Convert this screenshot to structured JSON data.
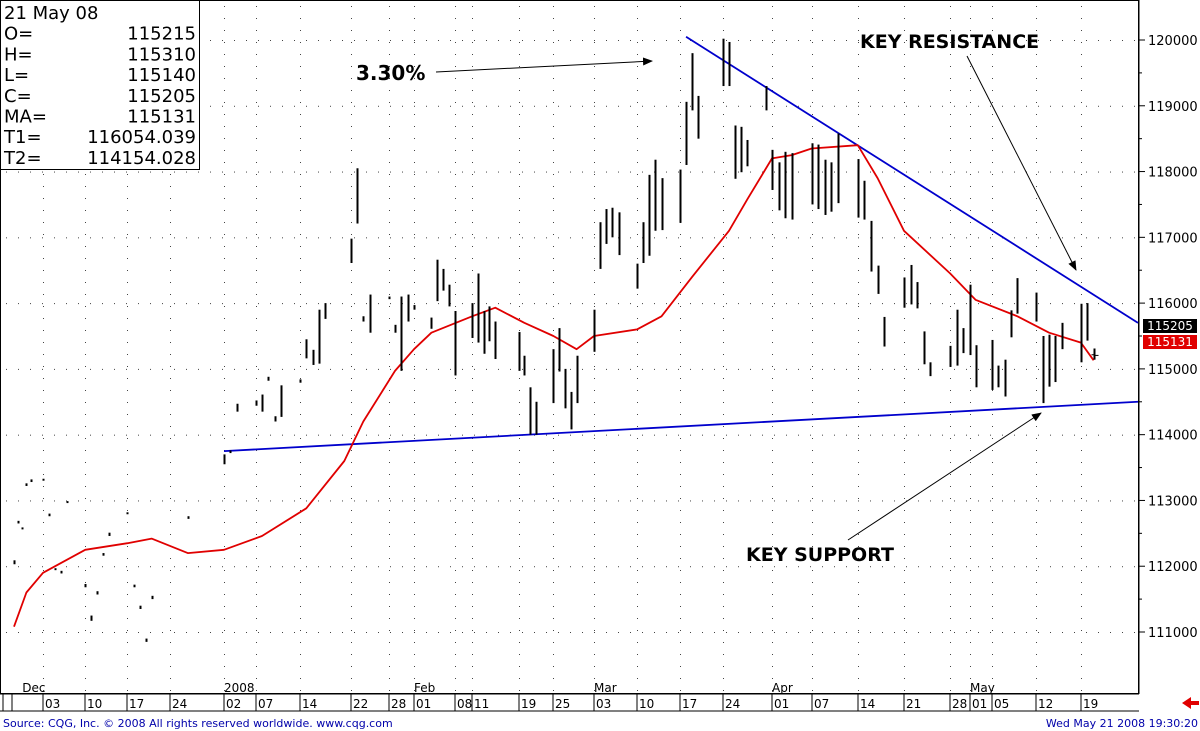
{
  "info_box": [
    {
      "label": "21 May 08",
      "value": ""
    },
    {
      "label": "O=",
      "value": "115215"
    },
    {
      "label": "H=",
      "value": "115310"
    },
    {
      "label": "L=",
      "value": "115140"
    },
    {
      "label": "C=",
      "value": "115205"
    },
    {
      "label": "MA=",
      "value": "115131"
    },
    {
      "label": "T1=",
      "value": "116054.039"
    },
    {
      "label": "T2=",
      "value": "114154.028"
    }
  ],
  "annotations": {
    "peak_pct": "3.30%",
    "key_resistance": "KEY RESISTANCE",
    "key_support": "KEY SUPPORT"
  },
  "footer": {
    "source": "Source: CQG, Inc. © 2008 All rights reserved worldwide. www.cqg.com",
    "timestamp": "Wed May 21 2008 19:30:20"
  },
  "price_badges": {
    "close": "115205",
    "ma": "115131"
  },
  "colors": {
    "ohlc": "#000000",
    "moving_average": "#e00000",
    "trendline": "#0000cc",
    "ma_badge": "#e00000",
    "close_badge": "#000000",
    "grid_dot": "#444444",
    "nav_arrow": "#e00000"
  },
  "nav_icon": "red-left-arrow-icon",
  "chart_data": {
    "type": "ohlc-bar",
    "x_ticks": [
      "03",
      "10",
      "17",
      "24",
      "02",
      "07",
      "14",
      "22",
      "28",
      "01",
      "08",
      "11",
      "19",
      "25",
      "03",
      "10",
      "17",
      "24",
      "01",
      "07",
      "14",
      "21",
      "28",
      "01",
      "05",
      "12",
      "19"
    ],
    "x_tick_dates": [
      "2007-12-03",
      "2007-12-10",
      "2007-12-17",
      "2007-12-24",
      "2008-01-02",
      "2008-01-07",
      "2008-01-14",
      "2008-01-22",
      "2008-01-28",
      "2008-02-01",
      "2008-02-08",
      "2008-02-11",
      "2008-02-19",
      "2008-02-25",
      "2008-03-03",
      "2008-03-10",
      "2008-03-17",
      "2008-03-24",
      "2008-04-01",
      "2008-04-07",
      "2008-04-14",
      "2008-04-21",
      "2008-04-28",
      "2008-05-01",
      "2008-05-05",
      "2008-05-12",
      "2008-05-19"
    ],
    "month_labels": [
      {
        "label": "Dec",
        "date": "2007-11-28"
      },
      {
        "label": "2008",
        "date": "2008-01-02"
      },
      {
        "label": "Feb",
        "date": "2008-02-01"
      },
      {
        "label": "Mar",
        "date": "2008-03-03"
      },
      {
        "label": "Apr",
        "date": "2008-04-01"
      },
      {
        "label": "May",
        "date": "2008-05-01"
      }
    ],
    "y_ticks": [
      111000,
      112000,
      113000,
      114000,
      115000,
      116000,
      117000,
      118000,
      119000,
      120000
    ],
    "ylim": [
      110500,
      120500
    ],
    "xlim": [
      "2007-11-26",
      "2008-05-28"
    ],
    "grid": "dotted",
    "bars": [
      {
        "date": "2007-11-26",
        "h": 112090,
        "l": 112030
      },
      {
        "date": "2007-11-27",
        "h": 112690,
        "l": 112650
      },
      {
        "date": "2007-11-28",
        "h": 112590,
        "l": 112560
      },
      {
        "date": "2007-11-29",
        "h": 113260,
        "l": 113220
      },
      {
        "date": "2007-11-30",
        "h": 113320,
        "l": 113280
      },
      {
        "date": "2007-12-03",
        "h": 113330,
        "l": 113300
      },
      {
        "date": "2007-12-04",
        "h": 112800,
        "l": 112760
      },
      {
        "date": "2007-12-05",
        "h": 111970,
        "l": 111940
      },
      {
        "date": "2007-12-06",
        "h": 111930,
        "l": 111890
      },
      {
        "date": "2007-12-07",
        "h": 112990,
        "l": 112960
      },
      {
        "date": "2007-12-10",
        "h": 111730,
        "l": 111680
      },
      {
        "date": "2007-12-11",
        "h": 111250,
        "l": 111170
      },
      {
        "date": "2007-12-12",
        "h": 111620,
        "l": 111570
      },
      {
        "date": "2007-12-13",
        "h": 112200,
        "l": 112160
      },
      {
        "date": "2007-12-14",
        "h": 112510,
        "l": 112460
      },
      {
        "date": "2007-12-17",
        "h": 112820,
        "l": 112790
      },
      {
        "date": "2007-12-18",
        "h": 111720,
        "l": 111680
      },
      {
        "date": "2007-12-19",
        "h": 111400,
        "l": 111350
      },
      {
        "date": "2007-12-20",
        "h": 110900,
        "l": 110850
      },
      {
        "date": "2007-12-21",
        "h": 111550,
        "l": 111500
      },
      {
        "date": "2007-12-27",
        "h": 112760,
        "l": 112720
      },
      {
        "date": "2008-01-02",
        "h": 113700,
        "l": 113550
      },
      {
        "date": "2008-01-03",
        "h": 113760,
        "l": 113720
      },
      {
        "date": "2008-01-04",
        "h": 114470,
        "l": 114350
      },
      {
        "date": "2008-01-07",
        "h": 114520,
        "l": 114440
      },
      {
        "date": "2008-01-08",
        "h": 114610,
        "l": 114350
      },
      {
        "date": "2008-01-09",
        "h": 114880,
        "l": 114820
      },
      {
        "date": "2008-01-10",
        "h": 114280,
        "l": 114200
      },
      {
        "date": "2008-01-11",
        "h": 114750,
        "l": 114270
      },
      {
        "date": "2008-01-14",
        "h": 114840,
        "l": 114790
      },
      {
        "date": "2008-01-15",
        "h": 115450,
        "l": 115160
      },
      {
        "date": "2008-01-16",
        "h": 115290,
        "l": 115060
      },
      {
        "date": "2008-01-17",
        "h": 115900,
        "l": 115080
      },
      {
        "date": "2008-01-18",
        "h": 116000,
        "l": 115760
      },
      {
        "date": "2008-01-22",
        "h": 116980,
        "l": 116610
      },
      {
        "date": "2008-01-23",
        "h": 118050,
        "l": 117210
      },
      {
        "date": "2008-01-24",
        "h": 115800,
        "l": 115720
      },
      {
        "date": "2008-01-25",
        "h": 116130,
        "l": 115550
      },
      {
        "date": "2008-01-28",
        "h": 116100,
        "l": 116060
      },
      {
        "date": "2008-01-29",
        "h": 115670,
        "l": 115550
      },
      {
        "date": "2008-01-30",
        "h": 116100,
        "l": 114970
      },
      {
        "date": "2008-01-31",
        "h": 116130,
        "l": 115720
      },
      {
        "date": "2008-02-01",
        "h": 115970,
        "l": 115900
      },
      {
        "date": "2008-02-04",
        "h": 115780,
        "l": 115610
      },
      {
        "date": "2008-02-05",
        "h": 116660,
        "l": 116030
      },
      {
        "date": "2008-02-06",
        "h": 116520,
        "l": 116190
      },
      {
        "date": "2008-02-07",
        "h": 116280,
        "l": 115950
      },
      {
        "date": "2008-02-08",
        "h": 115880,
        "l": 114900
      },
      {
        "date": "2008-02-11",
        "h": 116000,
        "l": 115470
      },
      {
        "date": "2008-02-12",
        "h": 116450,
        "l": 115400
      },
      {
        "date": "2008-02-13",
        "h": 115880,
        "l": 115230
      },
      {
        "date": "2008-02-14",
        "h": 115950,
        "l": 115420
      },
      {
        "date": "2008-02-15",
        "h": 115720,
        "l": 115150
      },
      {
        "date": "2008-02-19",
        "h": 115560,
        "l": 114970
      },
      {
        "date": "2008-02-20",
        "h": 115200,
        "l": 114900
      },
      {
        "date": "2008-02-21",
        "h": 114720,
        "l": 114000
      },
      {
        "date": "2008-02-22",
        "h": 114500,
        "l": 114000
      },
      {
        "date": "2008-02-25",
        "h": 115300,
        "l": 114480
      },
      {
        "date": "2008-02-26",
        "h": 115620,
        "l": 114960
      },
      {
        "date": "2008-02-27",
        "h": 115000,
        "l": 114400
      },
      {
        "date": "2008-02-28",
        "h": 114650,
        "l": 114080
      },
      {
        "date": "2008-02-29",
        "h": 115200,
        "l": 114480
      },
      {
        "date": "2008-03-03",
        "h": 115900,
        "l": 115260
      },
      {
        "date": "2008-03-04",
        "h": 117230,
        "l": 116520
      },
      {
        "date": "2008-03-05",
        "h": 117430,
        "l": 116900
      },
      {
        "date": "2008-03-06",
        "h": 117450,
        "l": 117000
      },
      {
        "date": "2008-03-07",
        "h": 117380,
        "l": 116730
      },
      {
        "date": "2008-03-10",
        "h": 116600,
        "l": 116220
      },
      {
        "date": "2008-03-11",
        "h": 117230,
        "l": 116610
      },
      {
        "date": "2008-03-12",
        "h": 117950,
        "l": 116720
      },
      {
        "date": "2008-03-13",
        "h": 118180,
        "l": 117100
      },
      {
        "date": "2008-03-14",
        "h": 117900,
        "l": 117110
      },
      {
        "date": "2008-03-17",
        "h": 118030,
        "l": 117220
      },
      {
        "date": "2008-03-18",
        "h": 119060,
        "l": 118100
      },
      {
        "date": "2008-03-19",
        "h": 119800,
        "l": 118930
      },
      {
        "date": "2008-03-20",
        "h": 119150,
        "l": 118500
      },
      {
        "date": "2008-03-24",
        "h": 120020,
        "l": 119300
      },
      {
        "date": "2008-03-25",
        "h": 119970,
        "l": 119300
      },
      {
        "date": "2008-03-26",
        "h": 118700,
        "l": 117890
      },
      {
        "date": "2008-03-27",
        "h": 118680,
        "l": 117990
      },
      {
        "date": "2008-03-28",
        "h": 118480,
        "l": 118080
      },
      {
        "date": "2008-03-31",
        "h": 119300,
        "l": 118930
      },
      {
        "date": "2008-04-01",
        "h": 118330,
        "l": 117720
      },
      {
        "date": "2008-04-02",
        "h": 118140,
        "l": 117410
      },
      {
        "date": "2008-04-03",
        "h": 118300,
        "l": 117290
      },
      {
        "date": "2008-04-04",
        "h": 118280,
        "l": 117270
      },
      {
        "date": "2008-04-07",
        "h": 118430,
        "l": 117500
      },
      {
        "date": "2008-04-08",
        "h": 118410,
        "l": 117430
      },
      {
        "date": "2008-04-09",
        "h": 118180,
        "l": 117340
      },
      {
        "date": "2008-04-10",
        "h": 118140,
        "l": 117390
      },
      {
        "date": "2008-04-11",
        "h": 118580,
        "l": 117520
      },
      {
        "date": "2008-04-14",
        "h": 118190,
        "l": 117300
      },
      {
        "date": "2008-04-15",
        "h": 117860,
        "l": 117270
      },
      {
        "date": "2008-04-16",
        "h": 117250,
        "l": 116480
      },
      {
        "date": "2008-04-17",
        "h": 116570,
        "l": 116140
      },
      {
        "date": "2008-04-18",
        "h": 115790,
        "l": 115340
      },
      {
        "date": "2008-04-21",
        "h": 116390,
        "l": 115930
      },
      {
        "date": "2008-04-22",
        "h": 116580,
        "l": 115980
      },
      {
        "date": "2008-04-23",
        "h": 116320,
        "l": 115920
      },
      {
        "date": "2008-04-24",
        "h": 115570,
        "l": 115070
      },
      {
        "date": "2008-04-25",
        "h": 115100,
        "l": 114890
      },
      {
        "date": "2008-04-28",
        "h": 115350,
        "l": 115030
      },
      {
        "date": "2008-04-29",
        "h": 115900,
        "l": 115050
      },
      {
        "date": "2008-04-30",
        "h": 115620,
        "l": 115240
      },
      {
        "date": "2008-05-01",
        "h": 116280,
        "l": 115210
      },
      {
        "date": "2008-05-02",
        "h": 115360,
        "l": 114720
      },
      {
        "date": "2008-05-05",
        "h": 115440,
        "l": 114680
      },
      {
        "date": "2008-05-06",
        "h": 115050,
        "l": 114720
      },
      {
        "date": "2008-05-07",
        "h": 115140,
        "l": 114580
      },
      {
        "date": "2008-05-08",
        "h": 115890,
        "l": 115480
      },
      {
        "date": "2008-05-09",
        "h": 116380,
        "l": 115840
      },
      {
        "date": "2008-05-12",
        "h": 116160,
        "l": 115720
      },
      {
        "date": "2008-05-13",
        "h": 115500,
        "l": 114480
      },
      {
        "date": "2008-05-14",
        "h": 115520,
        "l": 114730
      },
      {
        "date": "2008-05-15",
        "h": 115500,
        "l": 114800
      },
      {
        "date": "2008-05-16",
        "h": 115700,
        "l": 115300
      },
      {
        "date": "2008-05-19",
        "h": 115990,
        "l": 115100
      },
      {
        "date": "2008-05-20",
        "h": 116000,
        "l": 115430
      },
      {
        "date": "2008-05-21",
        "h": 115310,
        "l": 115140,
        "o": 115215,
        "c": 115205
      }
    ],
    "moving_average": {
      "color": "#e00000",
      "points": [
        [
          "2007-11-26",
          111080
        ],
        [
          "2007-11-29",
          111600
        ],
        [
          "2007-12-03",
          111900
        ],
        [
          "2007-12-06",
          112050
        ],
        [
          "2007-12-10",
          112250
        ],
        [
          "2007-12-17",
          112350
        ],
        [
          "2007-12-21",
          112420
        ],
        [
          "2007-12-27",
          112200
        ],
        [
          "2008-01-02",
          112250
        ],
        [
          "2008-01-08",
          112460
        ],
        [
          "2008-01-15",
          112880
        ],
        [
          "2008-01-21",
          113600
        ],
        [
          "2008-01-24",
          114200
        ],
        [
          "2008-01-29",
          114970
        ],
        [
          "2008-02-01",
          115300
        ],
        [
          "2008-02-04",
          115550
        ],
        [
          "2008-02-11",
          115800
        ],
        [
          "2008-02-15",
          115930
        ],
        [
          "2008-02-20",
          115700
        ],
        [
          "2008-02-25",
          115500
        ],
        [
          "2008-02-29",
          115300
        ],
        [
          "2008-03-03",
          115500
        ],
        [
          "2008-03-10",
          115600
        ],
        [
          "2008-03-14",
          115800
        ],
        [
          "2008-03-19",
          116400
        ],
        [
          "2008-03-25",
          117100
        ],
        [
          "2008-03-28",
          117580
        ],
        [
          "2008-04-01",
          118200
        ],
        [
          "2008-04-04",
          118250
        ],
        [
          "2008-04-07",
          118350
        ],
        [
          "2008-04-14",
          118400
        ],
        [
          "2008-04-17",
          117900
        ],
        [
          "2008-04-21",
          117100
        ],
        [
          "2008-04-28",
          116450
        ],
        [
          "2008-05-02",
          116050
        ],
        [
          "2008-05-09",
          115800
        ],
        [
          "2008-05-14",
          115550
        ],
        [
          "2008-05-19",
          115400
        ],
        [
          "2008-05-21",
          115131
        ]
      ]
    },
    "trendlines": [
      {
        "name": "resistance",
        "from": [
          "2008-03-18",
          120050
        ],
        "to": [
          "2008-05-28",
          115700
        ],
        "color": "#0000cc"
      },
      {
        "name": "support",
        "from": [
          "2008-01-02",
          113750
        ],
        "to": [
          "2008-05-28",
          114500
        ],
        "color": "#0000cc"
      }
    ]
  }
}
